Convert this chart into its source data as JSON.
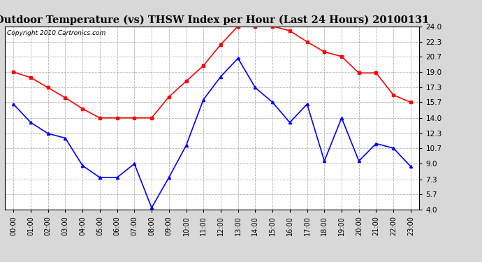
{
  "title": "Outdoor Temperature (vs) THSW Index per Hour (Last 24 Hours) 20100131",
  "copyright_text": "Copyright 2010 Cartronics.com",
  "hours": [
    "00:00",
    "01:00",
    "02:00",
    "03:00",
    "04:00",
    "05:00",
    "06:00",
    "07:00",
    "08:00",
    "09:00",
    "10:00",
    "11:00",
    "12:00",
    "13:00",
    "14:00",
    "15:00",
    "16:00",
    "17:00",
    "18:00",
    "19:00",
    "20:00",
    "21:00",
    "22:00",
    "23:00"
  ],
  "temp_data": [
    15.5,
    13.5,
    12.3,
    11.8,
    8.8,
    7.5,
    7.5,
    9.0,
    4.2,
    7.5,
    11.0,
    16.0,
    18.5,
    20.5,
    17.3,
    15.7,
    13.5,
    15.5,
    9.3,
    14.0,
    9.3,
    11.2,
    10.7,
    8.7
  ],
  "thsw_data": [
    19.0,
    18.4,
    17.3,
    16.2,
    15.0,
    14.0,
    14.0,
    14.0,
    14.0,
    16.3,
    18.0,
    19.7,
    22.0,
    24.0,
    24.0,
    24.0,
    23.5,
    22.3,
    21.2,
    20.7,
    18.9,
    18.9,
    16.5,
    15.7
  ],
  "yticks": [
    4.0,
    5.7,
    7.3,
    9.0,
    10.7,
    12.3,
    14.0,
    15.7,
    17.3,
    19.0,
    20.7,
    22.3,
    24.0
  ],
  "ymin": 4.0,
  "ymax": 24.0,
  "temp_color": "blue",
  "thsw_color": "red",
  "bg_color": "#d8d8d8",
  "plot_bg_color": "#ffffff",
  "grid_color": "#aaaaaa",
  "title_fontsize": 10.5,
  "copyright_fontsize": 6.5
}
